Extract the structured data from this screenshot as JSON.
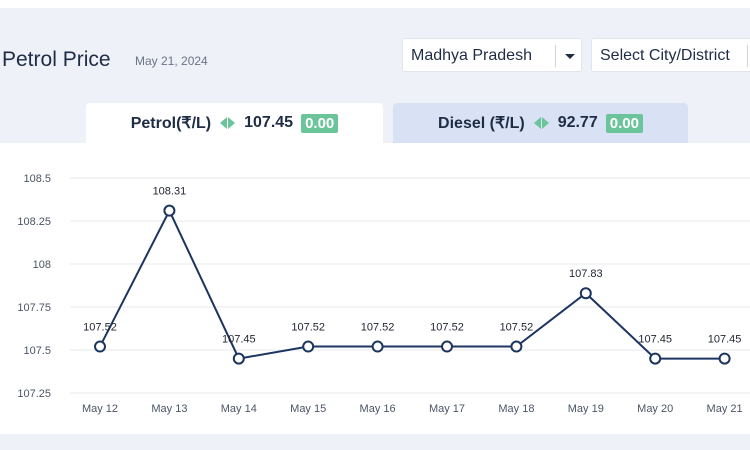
{
  "header": {
    "title": "Petrol Price",
    "date": "May 21, 2024",
    "state_select": "Madhya Pradesh",
    "city_select": "Select City/District"
  },
  "tabs": [
    {
      "label": "Petrol(₹/L)",
      "price": "107.45",
      "change": "0.00"
    },
    {
      "label": "Diesel (₹/L)",
      "price": "92.77",
      "change": "0.00"
    }
  ],
  "colors": {
    "line": "#1c3560",
    "badge": "#6cc49a",
    "diesel_tab_bg": "#d9e2f4"
  },
  "chart_data": {
    "type": "line",
    "categories": [
      "May 12",
      "May 13",
      "May 14",
      "May 15",
      "May 16",
      "May 17",
      "May 18",
      "May 19",
      "May 20",
      "May 21"
    ],
    "values": [
      107.52,
      108.31,
      107.45,
      107.52,
      107.52,
      107.52,
      107.52,
      107.83,
      107.45,
      107.45
    ],
    "data_labels": [
      "107.52",
      "108.31",
      "107.45",
      "107.52",
      "107.52",
      "107.52",
      "107.52",
      "107.83",
      "107.45",
      "107.45"
    ],
    "yticks": [
      {
        "value": 107.25,
        "label": "107.25"
      },
      {
        "value": 107.5,
        "label": "107.5"
      },
      {
        "value": 107.75,
        "label": "107.75"
      },
      {
        "value": 108,
        "label": "108"
      },
      {
        "value": 108.25,
        "label": "108.25"
      },
      {
        "value": 108.5,
        "label": "108.5"
      }
    ],
    "ylim": [
      107.25,
      108.5
    ],
    "grid": true
  }
}
